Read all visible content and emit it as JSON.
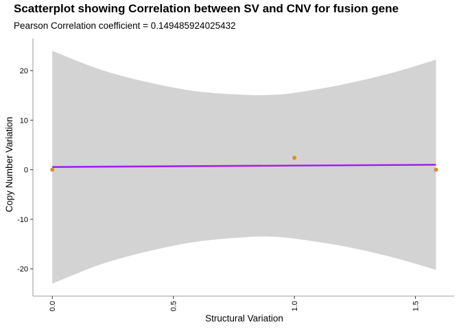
{
  "chart_data": {
    "type": "scatter",
    "title": "Scatterplot showing Correlation between SV and CNV for fusion gene",
    "subtitle": "Pearson Correlation coefficient = 0.149485924025432",
    "xlabel": "Structural Variation",
    "ylabel": "Copy Number Variation",
    "xlim": [
      -0.08,
      1.66
    ],
    "ylim": [
      -25.5,
      26.5
    ],
    "x_ticks": [
      0.0,
      0.5,
      1.0,
      1.5
    ],
    "x_tick_labels": [
      "0.0",
      "0.5",
      "1.0",
      "1.5"
    ],
    "y_ticks": [
      -20,
      -10,
      0,
      10,
      20
    ],
    "y_tick_labels": [
      "-20",
      "-10",
      "0",
      "10",
      "20"
    ],
    "grid": false,
    "legend": "none",
    "points": [
      {
        "x": 0.0,
        "y": 0.0
      },
      {
        "x": 1.0,
        "y": 2.4
      },
      {
        "x": 1.585,
        "y": 0.0
      }
    ],
    "fit_line": {
      "x": [
        0.0,
        1.585
      ],
      "y": [
        0.55,
        1.0
      ]
    },
    "confidence_band": {
      "x": [
        0.0,
        0.2,
        0.4,
        0.6,
        0.8,
        0.9,
        1.0,
        1.2,
        1.4,
        1.585
      ],
      "upper": [
        24.0,
        20.2,
        17.6,
        15.8,
        15.1,
        15.1,
        15.5,
        17.2,
        19.5,
        22.2
      ],
      "lower": [
        -23.0,
        -19.1,
        -16.4,
        -14.5,
        -13.6,
        -13.5,
        -13.9,
        -15.4,
        -17.6,
        -20.2
      ]
    },
    "colors": {
      "point": "#D98E2B",
      "fit_line": "#A020F0",
      "band": "#D3D3D3",
      "axis": "#BEBEBE",
      "text": "#000000"
    }
  }
}
